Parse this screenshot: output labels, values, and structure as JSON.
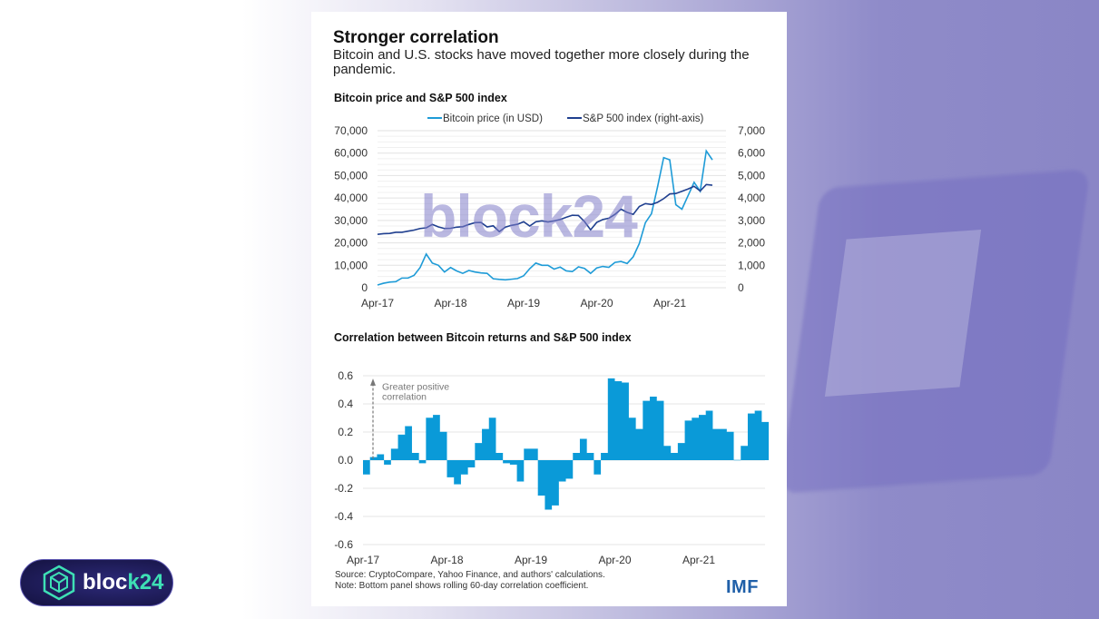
{
  "header": {
    "title": "Stronger correlation",
    "subtitle": "Bitcoin and U.S. stocks have moved together more closely during the pandemic."
  },
  "footer": {
    "source": "Source: CryptoCompare, Yahoo Finance, and authors' calculations.",
    "note": "Note: Bottom panel shows rolling 60-day correlation coefficient.",
    "logo": "IMF"
  },
  "watermark": "block24",
  "badge": {
    "text_a": "bloc",
    "text_b": "k24",
    "icon": "cube-hexagon-icon"
  },
  "colors": {
    "bitcoin": "#1e9bd7",
    "sp500": "#1f3f8f",
    "correlation": "#0a9ad8"
  },
  "chart_data": [
    {
      "type": "line",
      "title": "Bitcoin price and S&P 500 index",
      "legend_placement": "top",
      "x_start": "Apr-17",
      "x_frequency": "monthly",
      "xticks": [
        "Apr-17",
        "Apr-18",
        "Apr-19",
        "Apr-20",
        "Apr-21"
      ],
      "yticks_left": [
        "0",
        "10,000",
        "20,000",
        "30,000",
        "40,000",
        "50,000",
        "60,000",
        "70,000"
      ],
      "yticks_right": [
        "0",
        "1,000",
        "2,000",
        "3,000",
        "4,000",
        "5,000",
        "6,000",
        "7,000"
      ],
      "ylim_left": [
        0,
        70000
      ],
      "ylim_right": [
        0,
        7000
      ],
      "grid": true,
      "series": [
        {
          "name": "Bitcoin price (in USD)",
          "axis": "left",
          "values": [
            1200,
            2000,
            2500,
            2700,
            4300,
            4300,
            5500,
            9000,
            15000,
            11000,
            10000,
            7000,
            9000,
            7500,
            6400,
            7700,
            7000,
            6600,
            6400,
            4000,
            3700,
            3500,
            3800,
            4100,
            5300,
            8500,
            11000,
            10000,
            10000,
            8300,
            9200,
            7500,
            7200,
            9300,
            8600,
            6400,
            8800,
            9500,
            9100,
            11300,
            11700,
            10800,
            13800,
            19700,
            29000,
            33000,
            45000,
            58000,
            57000,
            37000,
            35000,
            41000,
            47000,
            43000,
            61000,
            57000
          ]
        },
        {
          "name": "S&P 500 index (right-axis)",
          "axis": "right",
          "values": [
            2380,
            2410,
            2420,
            2470,
            2470,
            2520,
            2570,
            2640,
            2670,
            2820,
            2710,
            2640,
            2650,
            2700,
            2720,
            2820,
            2900,
            2910,
            2710,
            2760,
            2500,
            2700,
            2780,
            2830,
            2940,
            2750,
            2940,
            2980,
            2930,
            2980,
            3040,
            3140,
            3230,
            3220,
            2950,
            2580,
            2910,
            3040,
            3100,
            3270,
            3500,
            3360,
            3270,
            3620,
            3750,
            3710,
            3810,
            3970,
            4180,
            4200,
            4300,
            4400,
            4520,
            4310,
            4600,
            4570
          ]
        }
      ]
    },
    {
      "type": "area",
      "title": "Correlation between Bitcoin returns and S&P 500 index",
      "x_start": "Apr-17",
      "x_frequency": "monthly",
      "xticks": [
        "Apr-17",
        "Apr-18",
        "Apr-19",
        "Apr-20",
        "Apr-21"
      ],
      "yticks": [
        "-0.6",
        "-0.4",
        "-0.2",
        "0.0",
        "0.2",
        "0.4",
        "0.6"
      ],
      "ylim": [
        -0.6,
        0.6
      ],
      "grid": true,
      "annotation": "Greater positive correlation",
      "values": [
        -0.1,
        0.02,
        0.04,
        -0.03,
        0.08,
        0.18,
        0.24,
        0.05,
        -0.02,
        0.3,
        0.32,
        0.2,
        -0.12,
        -0.17,
        -0.1,
        -0.05,
        0.12,
        0.22,
        0.3,
        0.05,
        -0.02,
        -0.03,
        -0.15,
        0.08,
        0.08,
        -0.25,
        -0.35,
        -0.32,
        -0.15,
        -0.13,
        0.05,
        0.15,
        0.05,
        -0.1,
        0.05,
        0.58,
        0.56,
        0.55,
        0.3,
        0.22,
        0.42,
        0.45,
        0.42,
        0.1,
        0.05,
        0.12,
        0.28,
        0.3,
        0.32,
        0.35,
        0.22,
        0.22,
        0.2,
        0.0,
        0.1,
        0.33,
        0.35,
        0.27
      ]
    }
  ]
}
